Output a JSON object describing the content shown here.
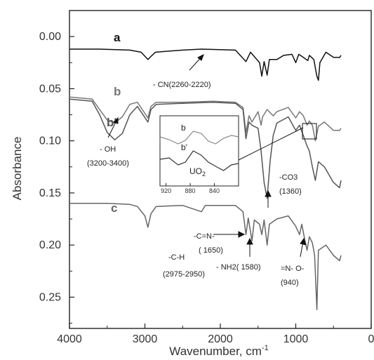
{
  "chart_data": {
    "type": "line",
    "title": "",
    "xlabel": "Wavenumber, cm",
    "xlabel_superscript": "-1",
    "ylabel": "Absorbance",
    "xlim": [
      4000,
      0
    ],
    "ylim": [
      -0.025,
      0.28
    ],
    "x_ticks": [
      4000,
      3000,
      2000,
      1000,
      0
    ],
    "x_tick_labels": [
      "4000",
      "3000",
      "2000",
      "1000",
      "0"
    ],
    "y_ticks": [
      0.0,
      0.05,
      0.1,
      0.15,
      0.2,
      0.25
    ],
    "y_tick_labels": [
      "0.00",
      "0.05",
      "0.10",
      "0.15",
      "0.20",
      "0.25"
    ],
    "grid": false,
    "series": [
      {
        "name": "a",
        "color": "#111111",
        "points": [
          [
            4000,
            0.012
          ],
          [
            3600,
            0.012
          ],
          [
            3200,
            0.013
          ],
          [
            3050,
            0.015
          ],
          [
            2960,
            0.022
          ],
          [
            2920,
            0.019
          ],
          [
            2860,
            0.015
          ],
          [
            2500,
            0.013
          ],
          [
            2250,
            0.012
          ],
          [
            1800,
            0.013
          ],
          [
            1660,
            0.024
          ],
          [
            1600,
            0.015
          ],
          [
            1480,
            0.025
          ],
          [
            1450,
            0.038
          ],
          [
            1420,
            0.024
          ],
          [
            1380,
            0.037
          ],
          [
            1350,
            0.022
          ],
          [
            1250,
            0.022
          ],
          [
            1160,
            0.018
          ],
          [
            1050,
            0.017
          ],
          [
            1000,
            0.025
          ],
          [
            960,
            0.017
          ],
          [
            900,
            0.02
          ],
          [
            840,
            0.023
          ],
          [
            820,
            0.018
          ],
          [
            760,
            0.022
          ],
          [
            740,
            0.03
          ],
          [
            720,
            0.038
          ],
          [
            700,
            0.042
          ],
          [
            680,
            0.025
          ],
          [
            600,
            0.015
          ],
          [
            500,
            0.02
          ],
          [
            420,
            0.02
          ],
          [
            400,
            0.018
          ]
        ]
      },
      {
        "name": "b",
        "color": "#777777",
        "points": [
          [
            4000,
            0.058
          ],
          [
            3700,
            0.06
          ],
          [
            3600,
            0.07
          ],
          [
            3500,
            0.08
          ],
          [
            3400,
            0.083
          ],
          [
            3300,
            0.077
          ],
          [
            3200,
            0.065
          ],
          [
            3100,
            0.063
          ],
          [
            2960,
            0.078
          ],
          [
            2920,
            0.067
          ],
          [
            2850,
            0.063
          ],
          [
            2500,
            0.063
          ],
          [
            2100,
            0.062
          ],
          [
            1800,
            0.063
          ],
          [
            1700,
            0.068
          ],
          [
            1660,
            0.092
          ],
          [
            1620,
            0.076
          ],
          [
            1580,
            0.082
          ],
          [
            1500,
            0.072
          ],
          [
            1460,
            0.085
          ],
          [
            1440,
            0.077
          ],
          [
            1380,
            0.07
          ],
          [
            1300,
            0.076
          ],
          [
            1250,
            0.072
          ],
          [
            1100,
            0.068
          ],
          [
            1000,
            0.078
          ],
          [
            950,
            0.072
          ],
          [
            900,
            0.076
          ],
          [
            850,
            0.085
          ],
          [
            820,
            0.081
          ],
          [
            780,
            0.085
          ],
          [
            740,
            0.1
          ],
          [
            700,
            0.086
          ],
          [
            620,
            0.082
          ],
          [
            500,
            0.09
          ],
          [
            420,
            0.09
          ],
          [
            400,
            0.088
          ]
        ]
      },
      {
        "name": "b'",
        "color": "#555555",
        "points": [
          [
            4000,
            0.06
          ],
          [
            3700,
            0.062
          ],
          [
            3600,
            0.075
          ],
          [
            3500,
            0.092
          ],
          [
            3400,
            0.099
          ],
          [
            3300,
            0.093
          ],
          [
            3200,
            0.075
          ],
          [
            3100,
            0.067
          ],
          [
            2960,
            0.082
          ],
          [
            2920,
            0.07
          ],
          [
            2850,
            0.065
          ],
          [
            2500,
            0.064
          ],
          [
            2100,
            0.063
          ],
          [
            1800,
            0.064
          ],
          [
            1700,
            0.07
          ],
          [
            1660,
            0.098
          ],
          [
            1620,
            0.082
          ],
          [
            1580,
            0.085
          ],
          [
            1500,
            0.088
          ],
          [
            1460,
            0.11
          ],
          [
            1420,
            0.14
          ],
          [
            1380,
            0.155
          ],
          [
            1340,
            0.12
          ],
          [
            1300,
            0.095
          ],
          [
            1250,
            0.083
          ],
          [
            1100,
            0.077
          ],
          [
            1000,
            0.09
          ],
          [
            950,
            0.085
          ],
          [
            900,
            0.095
          ],
          [
            850,
            0.105
          ],
          [
            820,
            0.11
          ],
          [
            780,
            0.125
          ],
          [
            740,
            0.138
          ],
          [
            700,
            0.12
          ],
          [
            620,
            0.125
          ],
          [
            500,
            0.14
          ],
          [
            420,
            0.145
          ],
          [
            400,
            0.138
          ]
        ]
      },
      {
        "name": "c",
        "color": "#666666",
        "points": [
          [
            4000,
            0.16
          ],
          [
            3500,
            0.16
          ],
          [
            3200,
            0.161
          ],
          [
            3100,
            0.163
          ],
          [
            3000,
            0.172
          ],
          [
            2960,
            0.183
          ],
          [
            2920,
            0.17
          ],
          [
            2850,
            0.163
          ],
          [
            2500,
            0.162
          ],
          [
            2250,
            0.168
          ],
          [
            2200,
            0.162
          ],
          [
            1800,
            0.162
          ],
          [
            1700,
            0.168
          ],
          [
            1660,
            0.19
          ],
          [
            1630,
            0.174
          ],
          [
            1580,
            0.196
          ],
          [
            1550,
            0.176
          ],
          [
            1480,
            0.18
          ],
          [
            1450,
            0.19
          ],
          [
            1420,
            0.176
          ],
          [
            1380,
            0.2
          ],
          [
            1350,
            0.18
          ],
          [
            1250,
            0.175
          ],
          [
            1100,
            0.172
          ],
          [
            1000,
            0.182
          ],
          [
            950,
            0.19
          ],
          [
            920,
            0.18
          ],
          [
            880,
            0.195
          ],
          [
            850,
            0.205
          ],
          [
            820,
            0.192
          ],
          [
            780,
            0.198
          ],
          [
            750,
            0.21
          ],
          [
            720,
            0.262
          ],
          [
            700,
            0.205
          ],
          [
            600,
            0.2
          ],
          [
            500,
            0.21
          ],
          [
            420,
            0.215
          ],
          [
            400,
            0.21
          ]
        ]
      }
    ],
    "curve_labels": [
      "a",
      "b",
      "b'",
      "c"
    ],
    "annotations": [
      "- CN(2260-2220)",
      "- OH",
      "(3200-3400)",
      "-CO3",
      "(1360)",
      "-C-H",
      "(2975-2950)",
      "-C=N-",
      "( 1650)",
      "- NH2( 1580)",
      "=N- O-",
      "(940)"
    ],
    "inset": {
      "xlim": [
        930,
        800
      ],
      "x_ticks": [
        920,
        880,
        840
      ],
      "x_tick_labels": [
        "920",
        "880",
        "840"
      ],
      "labels": [
        "b",
        "b'"
      ],
      "band_label": "UO",
      "band_label_sub": "2",
      "series": [
        {
          "name": "b",
          "points": [
            [
              930,
              0.3
            ],
            [
              915,
              0.34
            ],
            [
              900,
              0.4
            ],
            [
              888,
              0.35
            ],
            [
              875,
              0.22
            ],
            [
              862,
              0.25
            ],
            [
              850,
              0.36
            ],
            [
              838,
              0.4
            ],
            [
              825,
              0.32
            ],
            [
              812,
              0.28
            ],
            [
              800,
              0.3
            ]
          ]
        },
        {
          "name": "b'",
          "points": [
            [
              930,
              0.62
            ],
            [
              915,
              0.6
            ],
            [
              900,
              0.7
            ],
            [
              888,
              0.66
            ],
            [
              875,
              0.5
            ],
            [
              862,
              0.56
            ],
            [
              850,
              0.66
            ],
            [
              838,
              0.72
            ],
            [
              825,
              0.78
            ],
            [
              812,
              0.7
            ],
            [
              800,
              0.68
            ]
          ]
        }
      ]
    }
  }
}
